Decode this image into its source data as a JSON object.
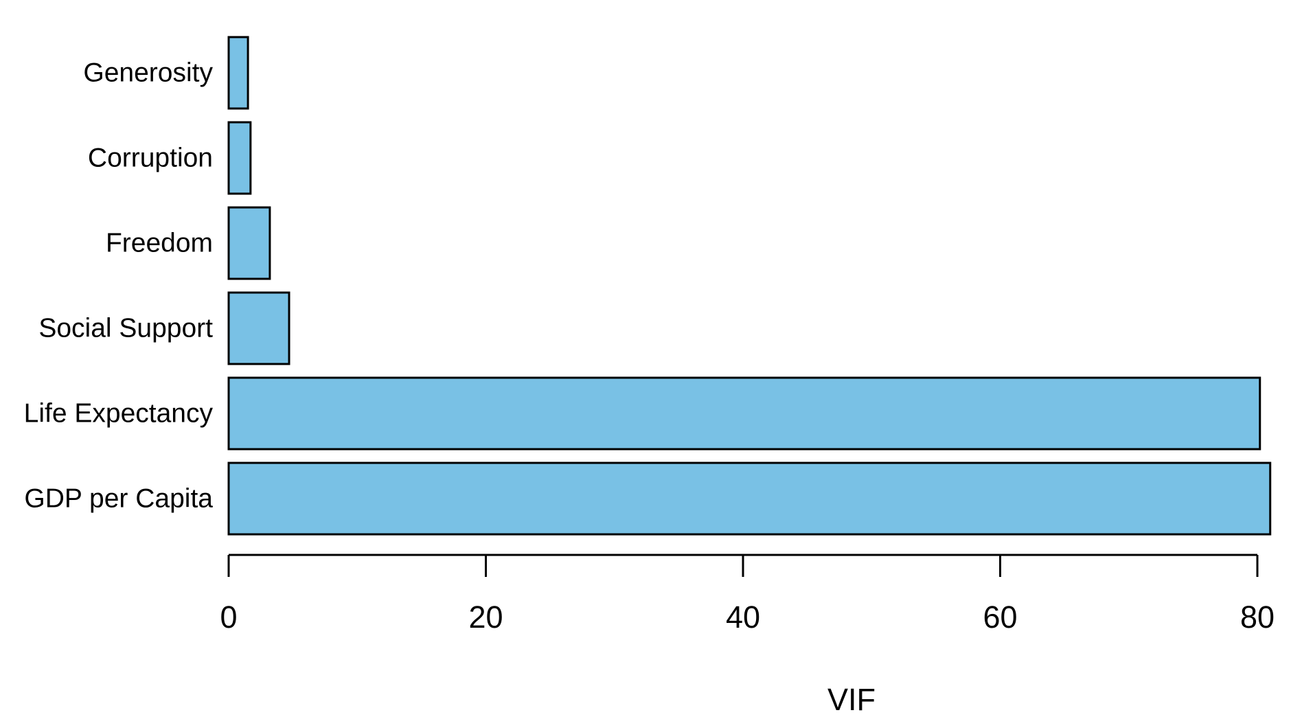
{
  "chart_data": {
    "type": "bar",
    "orientation": "horizontal",
    "categories": [
      "GDP per Capita",
      "Life Expectancy",
      "Social Support",
      "Freedom",
      "Corruption",
      "Generosity"
    ],
    "values": [
      81.0,
      80.2,
      4.7,
      3.2,
      1.7,
      1.5
    ],
    "xlabel": "VIF",
    "ylabel": "",
    "title": "",
    "xlim": [
      0,
      80
    ],
    "xticks": [
      0,
      20,
      40,
      60,
      80
    ],
    "xtick_labels": [
      "0",
      "20",
      "40",
      "60",
      "80"
    ],
    "grid": false,
    "legend": "none",
    "bar_color": "#79c1e5",
    "edge_color": "#000000"
  }
}
